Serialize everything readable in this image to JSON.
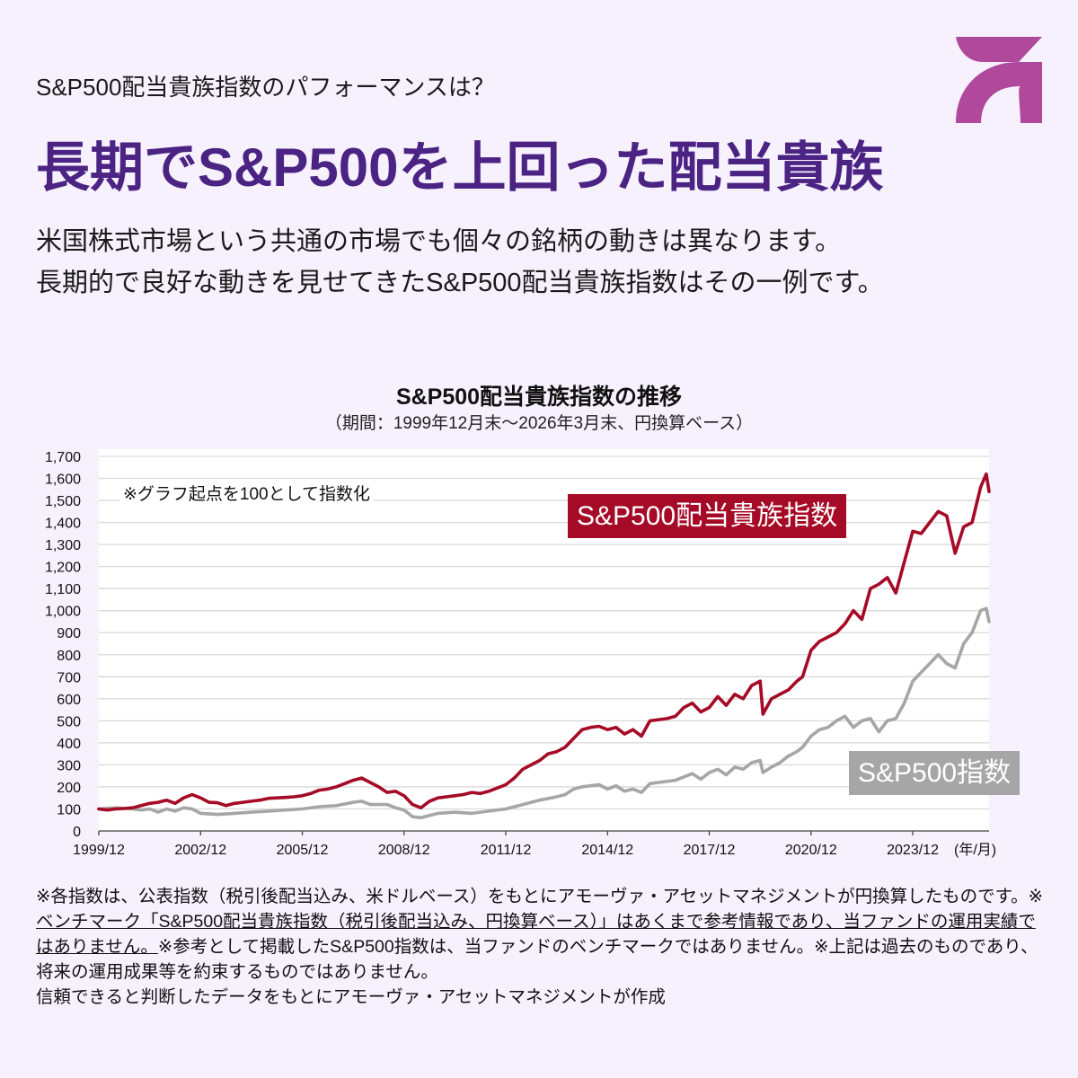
{
  "header": {
    "subtitle": "S&P500配当貴族指数のパフォーマンスは？",
    "headline": "長期でS&P500を上回った配当貴族",
    "logo_color": "#b0489b"
  },
  "lead": {
    "line1": "米国株式市場という共通の市場でも個々の銘柄の動きは異なります。",
    "line2": "長期的で良好な動きを見せてきたS&P500配当貴族指数はその一例です。"
  },
  "footnote": {
    "part1": "※各指数は、公表指数（税引後配当込み、米ドルベース）をもとにアモーヴァ・アセットマネジメントが円換算したものです。※",
    "part2_underlined": "ベンチマーク「S&P500配当貴族指数（税引後配当込み、円換算ベース）」はあくまで参考情報であり、当ファンドの運用実績ではありません。",
    "part3": "※参考として掲載したS&P500指数は、当ファンドのベンチマークではありません。※上記は過去のものであり、将来の運用成果等を約束するものではありません。",
    "line_last": "信頼できると判断したデータをもとにアモーヴァ・アセットマネジメントが作成"
  },
  "chart_data": {
    "type": "line",
    "title": "S&P500配当貴族指数の推移",
    "subtitle": "（期間：1999年12月末～2026年3月末、円換算ベース）",
    "note": "※グラフ起点を100として指数化",
    "xlabel": "(年/月)",
    "ylabel": "",
    "x_unit": "months since 1999/12",
    "xlim": [
      0,
      315
    ],
    "ylim": [
      0,
      1700
    ],
    "grid": true,
    "y_ticks": [
      0,
      100,
      200,
      300,
      400,
      500,
      600,
      700,
      800,
      900,
      1000,
      1100,
      1200,
      1300,
      1400,
      1500,
      1600,
      1700
    ],
    "y_tick_labels": [
      "0",
      "100",
      "200",
      "300",
      "400",
      "500",
      "600",
      "700",
      "800",
      "900",
      "1,000",
      "1,100",
      "1,200",
      "1,300",
      "1,400",
      "1,500",
      "1,600",
      "1,700"
    ],
    "x_ticks": [
      0,
      36,
      72,
      108,
      144,
      180,
      216,
      252,
      288
    ],
    "x_tick_labels": [
      "1999/12",
      "2002/12",
      "2005/12",
      "2008/12",
      "2011/12",
      "2014/12",
      "2017/12",
      "2020/12",
      "2023/12"
    ],
    "series": [
      {
        "name": "S&P500配当貴族指数",
        "color": "#a50a26",
        "x": [
          0,
          3,
          6,
          9,
          12,
          15,
          18,
          21,
          24,
          27,
          30,
          33,
          36,
          39,
          42,
          45,
          48,
          51,
          54,
          57,
          60,
          63,
          66,
          69,
          72,
          75,
          78,
          81,
          84,
          87,
          90,
          93,
          96,
          99,
          102,
          105,
          108,
          111,
          114,
          117,
          120,
          123,
          126,
          129,
          132,
          135,
          138,
          141,
          144,
          147,
          150,
          153,
          156,
          159,
          162,
          165,
          168,
          171,
          174,
          177,
          180,
          183,
          186,
          189,
          192,
          195,
          198,
          201,
          204,
          207,
          210,
          213,
          216,
          219,
          222,
          225,
          228,
          231,
          234,
          235,
          238,
          241,
          244,
          247,
          249,
          252,
          255,
          258,
          261,
          264,
          267,
          270,
          273,
          276,
          279,
          282,
          285,
          288,
          291,
          294,
          297,
          300,
          303,
          306,
          309,
          312,
          314,
          315
        ],
        "y": [
          100,
          95,
          100,
          102,
          105,
          115,
          125,
          130,
          140,
          125,
          150,
          165,
          150,
          130,
          128,
          115,
          125,
          130,
          135,
          140,
          148,
          150,
          152,
          155,
          160,
          170,
          185,
          190,
          200,
          215,
          230,
          240,
          220,
          200,
          175,
          180,
          160,
          120,
          105,
          135,
          150,
          155,
          160,
          165,
          175,
          170,
          180,
          195,
          210,
          240,
          280,
          300,
          320,
          350,
          360,
          380,
          420,
          460,
          470,
          475,
          460,
          470,
          440,
          460,
          430,
          500,
          505,
          510,
          520,
          560,
          580,
          540,
          560,
          610,
          570,
          620,
          600,
          660,
          680,
          530,
          600,
          620,
          640,
          680,
          700,
          820,
          860,
          880,
          900,
          940,
          1000,
          960,
          1100,
          1120,
          1150,
          1080,
          1220,
          1360,
          1350,
          1400,
          1450,
          1430,
          1260,
          1380,
          1400,
          1560,
          1620,
          1540
        ]
      },
      {
        "name": "S&P500指数",
        "color": "#a6a6a6",
        "x": [
          0,
          6,
          12,
          15,
          18,
          21,
          24,
          27,
          30,
          33,
          36,
          42,
          48,
          54,
          60,
          66,
          72,
          78,
          84,
          90,
          93,
          96,
          102,
          105,
          108,
          111,
          114,
          117,
          120,
          126,
          132,
          138,
          144,
          150,
          153,
          156,
          162,
          165,
          168,
          171,
          174,
          177,
          180,
          183,
          186,
          189,
          192,
          195,
          198,
          204,
          207,
          210,
          213,
          216,
          219,
          222,
          225,
          228,
          231,
          234,
          235,
          238,
          241,
          244,
          247,
          249,
          252,
          255,
          258,
          261,
          264,
          267,
          270,
          273,
          276,
          279,
          282,
          285,
          288,
          291,
          294,
          297,
          300,
          303,
          306,
          309,
          312,
          314,
          315
        ],
        "y": [
          100,
          105,
          100,
          95,
          100,
          85,
          100,
          90,
          105,
          100,
          80,
          75,
          80,
          85,
          90,
          95,
          100,
          110,
          115,
          130,
          135,
          120,
          120,
          105,
          95,
          65,
          60,
          70,
          80,
          85,
          80,
          90,
          100,
          120,
          130,
          140,
          155,
          165,
          190,
          200,
          205,
          210,
          190,
          205,
          180,
          190,
          175,
          215,
          220,
          230,
          245,
          260,
          235,
          265,
          280,
          255,
          290,
          280,
          310,
          320,
          265,
          290,
          310,
          340,
          360,
          380,
          430,
          460,
          470,
          500,
          520,
          470,
          500,
          510,
          450,
          500,
          510,
          580,
          680,
          720,
          760,
          800,
          760,
          740,
          850,
          900,
          1000,
          1010,
          950
        ]
      }
    ]
  }
}
